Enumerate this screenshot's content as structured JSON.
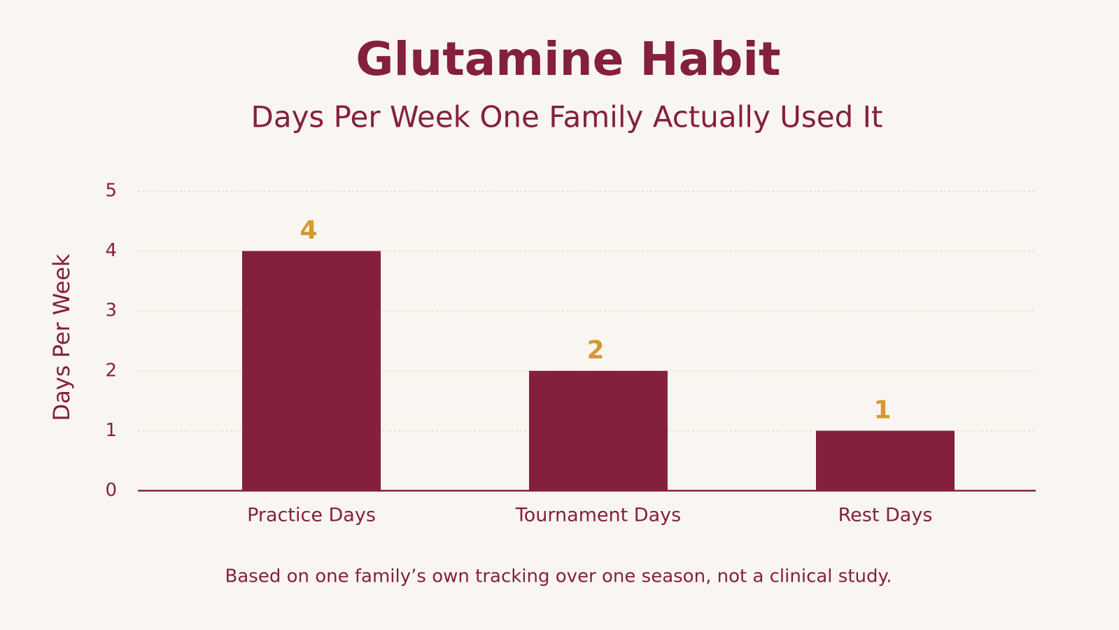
{
  "chart_data": {
    "type": "bar",
    "title": "Glutamine Habit",
    "subtitle": "Days Per Week One Family Actually Used It",
    "y_label": "Days Per Week",
    "categories": [
      "Practice Days",
      "Tournament Days",
      "Rest Days"
    ],
    "values": [
      4,
      2,
      1
    ],
    "color": "#84203b",
    "value_label_color": "#d4992f",
    "ylim": [
      0,
      5
    ],
    "yticks": [
      0,
      1,
      2,
      3,
      4,
      5
    ],
    "grid": true,
    "note": "Based on one family’s own tracking over one season, not a clinical study."
  }
}
